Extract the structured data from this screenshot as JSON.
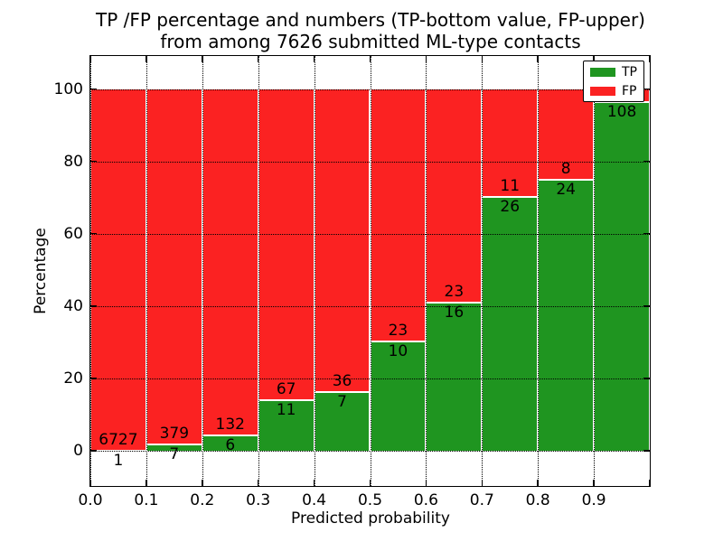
{
  "title": {
    "line1": "TP /FP percentage and numbers (TP-bottom value, FP-upper)",
    "line2": "from among 7626 submitted ML-type contacts"
  },
  "legend": {
    "items": [
      {
        "label": "TP",
        "color": "#1f9520"
      },
      {
        "label": "FP",
        "color": "#fb2222"
      }
    ]
  },
  "chart_data": {
    "type": "bar",
    "stacked": true,
    "title": "TP /FP percentage and numbers (TP-bottom value, FP-upper) from among 7626 submitted ML-type contacts",
    "xlabel": "Predicted probability",
    "ylabel": "Percentage",
    "xlim": [
      0.0,
      1.0
    ],
    "ylim": [
      -10,
      109
    ],
    "grid": true,
    "legend_position": "upper right",
    "bin_width": 0.1,
    "bin_starts": [
      0.0,
      0.1,
      0.2,
      0.3,
      0.4,
      0.5,
      0.6,
      0.7,
      0.8,
      0.9
    ],
    "x_tick_labels": [
      "0.0",
      "0.1",
      "0.2",
      "0.3",
      "0.4",
      "0.5",
      "0.6",
      "0.7",
      "0.8",
      "0.9"
    ],
    "y_tick_values": [
      0,
      20,
      40,
      60,
      80,
      100
    ],
    "y_tick_labels": [
      "0",
      "20",
      "40",
      "60",
      "80",
      "100"
    ],
    "series": [
      {
        "name": "TP",
        "color": "#1f9520",
        "counts": [
          1,
          7,
          6,
          11,
          7,
          10,
          16,
          26,
          24,
          108
        ],
        "count_labels": [
          "1",
          "7",
          "6",
          "11",
          "7",
          "10",
          "16",
          "26",
          "24",
          "108"
        ]
      },
      {
        "name": "FP",
        "color": "#fb2222",
        "counts": [
          6727,
          379,
          132,
          67,
          36,
          23,
          23,
          11,
          8,
          null
        ],
        "count_labels": [
          "6727",
          "379",
          "132",
          "67",
          "36",
          "23",
          "23",
          "11",
          "8",
          null
        ]
      }
    ],
    "tp_percent": [
      0.015,
      1.81,
      4.35,
      14.1,
      16.28,
      30.3,
      41.03,
      70.27,
      75.0,
      96.4
    ]
  }
}
